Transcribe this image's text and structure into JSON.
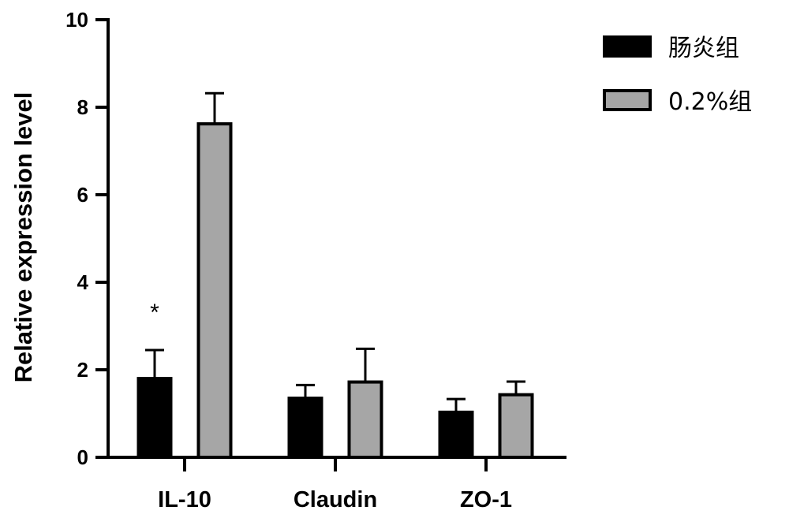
{
  "chart_data": {
    "type": "bar",
    "categories": [
      "IL-10",
      "Claudin",
      "ZO-1"
    ],
    "series": [
      {
        "name": "肠炎组",
        "color": "#000000",
        "values": [
          1.8,
          1.35,
          1.03
        ],
        "errors": [
          0.65,
          0.3,
          0.3
        ]
      },
      {
        "name": "0.2%组",
        "color": "#a6a6a6",
        "values": [
          7.62,
          1.72,
          1.43
        ],
        "errors": [
          0.7,
          0.76,
          0.3
        ]
      }
    ],
    "ylabel": "Relative expression level",
    "xlabel": "",
    "title": "",
    "ylim": [
      0,
      10
    ],
    "yticks": [
      "0",
      "2",
      "4",
      "6",
      "8",
      "10"
    ],
    "annotations": [
      {
        "category": "IL-10",
        "series": 0,
        "text": "*"
      }
    ],
    "legend_position": "top-right",
    "grid": false
  }
}
